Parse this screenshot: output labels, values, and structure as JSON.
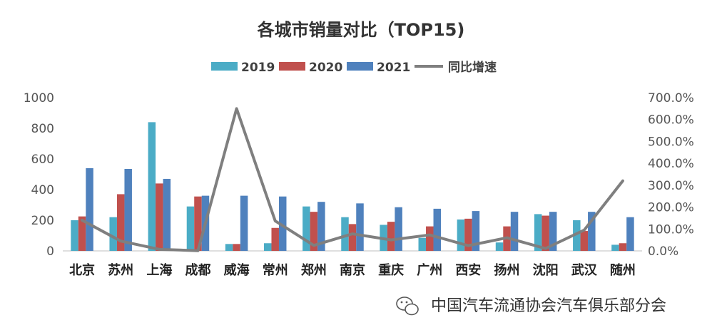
{
  "chart_data": {
    "type": "bar",
    "title": "各城市销量对比（TOP15)",
    "categories": [
      "北京",
      "苏州",
      "上海",
      "成都",
      "威海",
      "常州",
      "郑州",
      "南京",
      "重庆",
      "广州",
      "西安",
      "扬州",
      "沈阳",
      "武汉",
      "随州"
    ],
    "series": [
      {
        "name": "2019",
        "type": "bar",
        "axis": "left",
        "color": "#4BACC6",
        "values": [
          200,
          220,
          840,
          290,
          45,
          50,
          290,
          220,
          170,
          85,
          205,
          55,
          240,
          200,
          40
        ]
      },
      {
        "name": "2020",
        "type": "bar",
        "axis": "left",
        "color": "#C0504D",
        "values": [
          225,
          370,
          440,
          355,
          45,
          150,
          255,
          175,
          190,
          160,
          210,
          160,
          230,
          130,
          50
        ]
      },
      {
        "name": "2021",
        "type": "bar",
        "axis": "left",
        "color": "#4F81BD",
        "values": [
          540,
          535,
          470,
          360,
          360,
          355,
          320,
          310,
          285,
          275,
          260,
          255,
          255,
          255,
          220
        ]
      },
      {
        "name": "同比增速",
        "type": "line",
        "axis": "right",
        "color": "#7F7F7F",
        "values": [
          1.4,
          0.45,
          0.07,
          0.01,
          6.5,
          1.37,
          0.25,
          0.78,
          0.5,
          0.73,
          0.24,
          0.6,
          0.11,
          0.95,
          3.2
        ]
      }
    ],
    "y_left": {
      "min": 0,
      "max": 1000,
      "ticks": [
        0,
        200,
        400,
        600,
        800,
        1000
      ],
      "tick_labels": [
        "0",
        "200",
        "400",
        "600",
        "800",
        "1000"
      ]
    },
    "y_right": {
      "min": 0,
      "max": 7.0,
      "ticks": [
        0,
        1,
        2,
        3,
        4,
        5,
        6,
        7
      ],
      "tick_labels": [
        "0.0%",
        "100.0%",
        "200.0%",
        "300.0%",
        "400.0%",
        "500.0%",
        "600.0%",
        "700.0%"
      ]
    },
    "legend_position": "top",
    "grid": false
  },
  "watermark": {
    "text": "中国汽车流通协会汽车俱乐部分会",
    "icon": "wechat-icon"
  }
}
